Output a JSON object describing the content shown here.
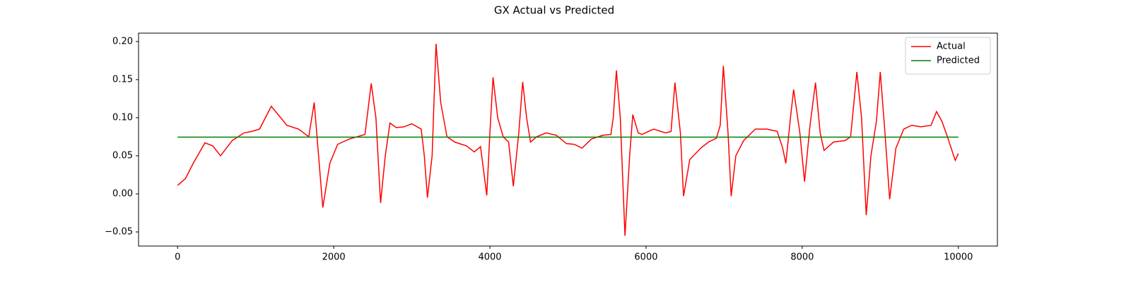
{
  "chart_data": {
    "type": "line",
    "title": "GX Actual vs Predicted",
    "xlim": [
      -500,
      10500
    ],
    "xticks": [
      0,
      2000,
      4000,
      6000,
      8000,
      10000
    ],
    "ylim": [
      -0.0685,
      0.211
    ],
    "yticks": [
      {
        "value": -0.05,
        "label": "−0.05"
      },
      {
        "value": 0,
        "label": "0.00"
      },
      {
        "value": 0.05,
        "label": "0.05"
      },
      {
        "value": 0.1,
        "label": "0.10"
      },
      {
        "value": 0.15,
        "label": "0.15"
      },
      {
        "value": 0.2,
        "label": "0.20"
      }
    ],
    "grid": false,
    "legend": "upper right",
    "series": [
      {
        "name": "Actual",
        "color": "#ff0000",
        "x": [
          0,
          100,
          200,
          350,
          450,
          550,
          700,
          850,
          950,
          1050,
          1200,
          1400,
          1550,
          1680,
          1750,
          1860,
          1950,
          2050,
          2200,
          2300,
          2400,
          2480,
          2540,
          2600,
          2660,
          2720,
          2800,
          2900,
          3000,
          3120,
          3160,
          3200,
          3260,
          3310,
          3370,
          3450,
          3550,
          3700,
          3800,
          3880,
          3920,
          3960,
          4000,
          4040,
          4100,
          4170,
          4240,
          4300,
          4370,
          4420,
          4470,
          4520,
          4600,
          4720,
          4850,
          4980,
          5080,
          5180,
          5300,
          5450,
          5550,
          5580,
          5620,
          5670,
          5730,
          5790,
          5830,
          5900,
          5950,
          6050,
          6100,
          6250,
          6320,
          6370,
          6440,
          6480,
          6560,
          6700,
          6800,
          6900,
          6950,
          6990,
          7050,
          7090,
          7150,
          7250,
          7400,
          7550,
          7680,
          7750,
          7790,
          7850,
          7890,
          7970,
          8030,
          8100,
          8170,
          8230,
          8280,
          8400,
          8550,
          8620,
          8700,
          8760,
          8820,
          8880,
          8950,
          9000,
          9060,
          9120,
          9200,
          9300,
          9400,
          9520,
          9650,
          9720,
          9790,
          9860,
          9940,
          9960,
          10000
        ],
        "values": [
          0.011,
          0.02,
          0.04,
          0.067,
          0.063,
          0.05,
          0.07,
          0.08,
          0.082,
          0.085,
          0.115,
          0.09,
          0.085,
          0.075,
          0.12,
          -0.018,
          0.04,
          0.065,
          0.072,
          0.075,
          0.078,
          0.145,
          0.1,
          -0.012,
          0.05,
          0.093,
          0.087,
          0.088,
          0.092,
          0.085,
          0.05,
          -0.005,
          0.05,
          0.197,
          0.12,
          0.075,
          0.068,
          0.063,
          0.055,
          0.062,
          0.03,
          -0.002,
          0.08,
          0.153,
          0.1,
          0.075,
          0.068,
          0.01,
          0.08,
          0.147,
          0.1,
          0.068,
          0.075,
          0.08,
          0.077,
          0.066,
          0.065,
          0.06,
          0.072,
          0.077,
          0.078,
          0.1,
          0.162,
          0.1,
          -0.055,
          0.05,
          0.104,
          0.08,
          0.078,
          0.083,
          0.085,
          0.08,
          0.082,
          0.146,
          0.08,
          -0.003,
          0.045,
          0.06,
          0.068,
          0.073,
          0.09,
          0.168,
          0.08,
          -0.003,
          0.05,
          0.07,
          0.085,
          0.085,
          0.082,
          0.06,
          0.04,
          0.1,
          0.137,
          0.08,
          0.016,
          0.09,
          0.146,
          0.08,
          0.057,
          0.068,
          0.07,
          0.075,
          0.16,
          0.1,
          -0.028,
          0.05,
          0.095,
          0.16,
          0.08,
          -0.007,
          0.06,
          0.085,
          0.09,
          0.088,
          0.09,
          0.108,
          0.095,
          0.075,
          0.05,
          0.044,
          0.053
        ]
      },
      {
        "name": "Predicted",
        "color": "#008000",
        "x": [
          0,
          10000
        ],
        "values": [
          0.0745,
          0.0745
        ]
      }
    ]
  }
}
